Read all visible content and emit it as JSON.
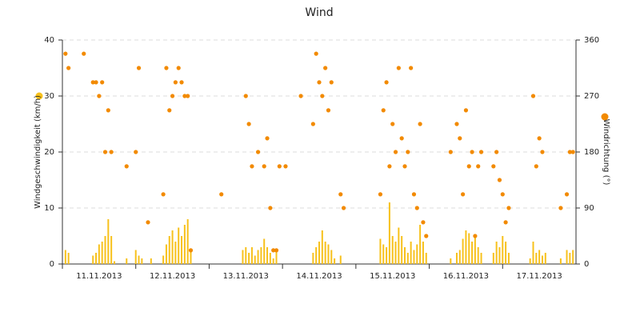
{
  "chart_data": {
    "type": "bar-scatter",
    "title": "Wind",
    "x": [
      0,
      1,
      2,
      3,
      4,
      5,
      6,
      7,
      8,
      9,
      10,
      11,
      12,
      13,
      14,
      15,
      16,
      17,
      18,
      19,
      20,
      21,
      22,
      23,
      24,
      25,
      26,
      27,
      28,
      29,
      30,
      31,
      32,
      33,
      34,
      35,
      36,
      37,
      38,
      39,
      40,
      41,
      42,
      43,
      44,
      45,
      46,
      47,
      48,
      49,
      50,
      51,
      52,
      53,
      54,
      55,
      56,
      57,
      58,
      59,
      60,
      61,
      62,
      63,
      64,
      65,
      66,
      67,
      68,
      69,
      70,
      71,
      72,
      73,
      74,
      75,
      76,
      77,
      78,
      79,
      80,
      81,
      82,
      83,
      84,
      85,
      86,
      87,
      88,
      89,
      90,
      91,
      92,
      93,
      94,
      95,
      96,
      97,
      98,
      99,
      100,
      101,
      102,
      103,
      104,
      105,
      106,
      107,
      108,
      109,
      110,
      111,
      112,
      113,
      114,
      115,
      116,
      117,
      118,
      119,
      120,
      121,
      122,
      123,
      124,
      125,
      126,
      127,
      128,
      129,
      130,
      131,
      132,
      133,
      134,
      135,
      136,
      137,
      138,
      139,
      140,
      141,
      142,
      143,
      144,
      145,
      146,
      147,
      148,
      149,
      150,
      151,
      152,
      153,
      154,
      155,
      156,
      157,
      158,
      159,
      160,
      161,
      162,
      163,
      164,
      165,
      166,
      167
    ],
    "series": [
      {
        "name": "Windgeschwindigkeit (km/h)",
        "kind": "bar",
        "color": "#f7c11c",
        "values": [
          0,
          2.5,
          2,
          0,
          0,
          0,
          0,
          0,
          0,
          0,
          1.5,
          2,
          3.5,
          4,
          5,
          8,
          5,
          0.5,
          0,
          0,
          0,
          1,
          0,
          0,
          2.5,
          1.5,
          1,
          0,
          0,
          1,
          0,
          0,
          0,
          1.5,
          3.5,
          5,
          6,
          4,
          6.5,
          5,
          7,
          8,
          2.5,
          0,
          0,
          0,
          0,
          0,
          0,
          0,
          0,
          0,
          0,
          0,
          0,
          0,
          0,
          0,
          0,
          2.5,
          3,
          2,
          3,
          1.5,
          2.5,
          3,
          4.5,
          3,
          2,
          1,
          2.5,
          0,
          0,
          0,
          0,
          0,
          0,
          0,
          0,
          0,
          0,
          0,
          2,
          3,
          4,
          6,
          4,
          3.5,
          2.5,
          1,
          0,
          1.5,
          0,
          0,
          0,
          0,
          0,
          0,
          0,
          0,
          0,
          0,
          0,
          0,
          4.5,
          3.5,
          3,
          11,
          5,
          4,
          6.5,
          5,
          3,
          2,
          4,
          2.5,
          3.5,
          7,
          4,
          2,
          0,
          0,
          0,
          0,
          0,
          0,
          0,
          1,
          0,
          2,
          2.5,
          4.5,
          6,
          5.5,
          4,
          5,
          3,
          2,
          0,
          0,
          0,
          2,
          4,
          3,
          5,
          4,
          2,
          0,
          0,
          0,
          0,
          0,
          0,
          1,
          4,
          2,
          2.5,
          1.5,
          2,
          0,
          0,
          0,
          0,
          1,
          0,
          2.5,
          2,
          2.5
        ]
      },
      {
        "name": "Windrichtung (°)",
        "kind": "scatter",
        "axis": "y2",
        "color": "#f28a00",
        "values": [
          null,
          338,
          315,
          null,
          null,
          null,
          null,
          338,
          null,
          null,
          292,
          292,
          270,
          292,
          180,
          247,
          180,
          null,
          null,
          null,
          null,
          157,
          null,
          null,
          180,
          315,
          null,
          null,
          67,
          null,
          null,
          null,
          null,
          112,
          315,
          247,
          270,
          292,
          315,
          292,
          270,
          270,
          22,
          null,
          null,
          null,
          null,
          null,
          null,
          null,
          null,
          null,
          112,
          null,
          null,
          null,
          null,
          null,
          null,
          null,
          270,
          225,
          157,
          null,
          180,
          null,
          157,
          202,
          90,
          22,
          22,
          157,
          null,
          157,
          null,
          null,
          null,
          null,
          270,
          null,
          null,
          null,
          225,
          338,
          292,
          270,
          315,
          247,
          292,
          null,
          null,
          112,
          90,
          null,
          null,
          null,
          null,
          null,
          null,
          null,
          null,
          null,
          null,
          null,
          112,
          247,
          292,
          157,
          225,
          180,
          315,
          202,
          157,
          180,
          315,
          112,
          90,
          225,
          67,
          45,
          null,
          null,
          null,
          null,
          null,
          null,
          null,
          180,
          null,
          225,
          202,
          112,
          247,
          157,
          180,
          45,
          157,
          180,
          null,
          null,
          null,
          157,
          180,
          135,
          112,
          67,
          90,
          null,
          null,
          null,
          null,
          null,
          null,
          null,
          270,
          157,
          202,
          180,
          null,
          null,
          null,
          null,
          null,
          90,
          null,
          112,
          180,
          180
        ]
      }
    ],
    "xlim": [
      0,
      168
    ],
    "xticks": [
      {
        "value": 0,
        "label": "11.11.2013"
      },
      {
        "value": 24,
        "label": "12.11.2013"
      },
      {
        "value": 48,
        "label": "13.11.2013"
      },
      {
        "value": 72,
        "label": "14.11.2013"
      },
      {
        "value": 96,
        "label": "15.11.2013"
      },
      {
        "value": 120,
        "label": "16.11.2013"
      },
      {
        "value": 144,
        "label": "17.11.2013"
      }
    ],
    "ylim": [
      0,
      40
    ],
    "yticks": [
      0,
      10,
      20,
      30,
      40
    ],
    "y2lim": [
      0,
      360
    ],
    "y2ticks": [
      0,
      90,
      180,
      270,
      360
    ],
    "grid": true
  }
}
